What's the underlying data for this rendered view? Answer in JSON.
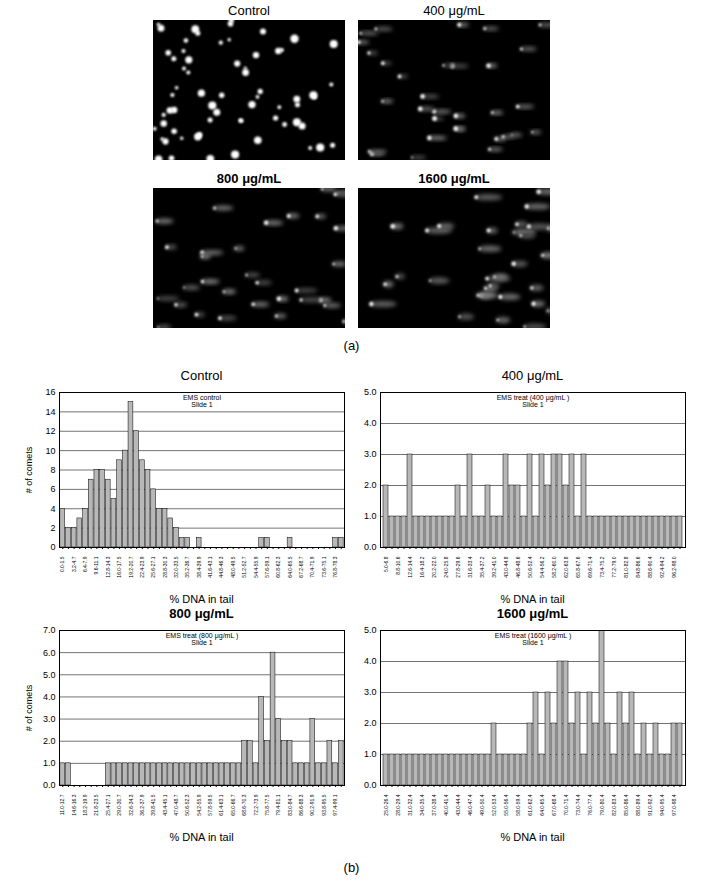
{
  "figure": {
    "label_a": "(a)",
    "label_b": "(b)",
    "images": [
      "Control",
      "400 μg/mL",
      "800 μg/mL",
      "1600 μg/mL"
    ]
  },
  "chart_data": [
    {
      "type": "bar",
      "title": "Control",
      "annotations": [
        "EMS control",
        "Slide 1"
      ],
      "xlabel": "% DNA in tail",
      "ylabel": "# of comets",
      "categories": [
        "0.0-1.5",
        null,
        "3.2-4.7",
        null,
        "6.4-7.9",
        null,
        "9.6-11.1",
        null,
        "12.8-14.3",
        null,
        "16.0-17.5",
        null,
        "19.2-20.7",
        null,
        "22.4-23.9",
        null,
        "25.6-27.1",
        null,
        "28.8-30.3",
        null,
        "32.0-33.5",
        null,
        "35.2-36.7",
        null,
        "38.4-39.9",
        null,
        "41.6-43.1",
        null,
        "44.8-46.3",
        null,
        "48.0-49.5",
        null,
        "51.2-52.7",
        null,
        "54.4-55.9",
        null,
        "57.6-59.1",
        null,
        "60.8-62.3",
        null,
        "64.0-65.5",
        null,
        "67.2-68.7",
        null,
        "70.4-71.9",
        null,
        "73.6-75.1",
        null,
        "76.8-78.3",
        null
      ],
      "values": [
        4,
        2,
        2,
        3,
        4,
        7,
        8,
        8,
        7,
        5,
        9,
        10,
        15,
        12,
        9,
        8,
        6,
        4,
        4,
        3,
        2,
        1,
        1,
        0,
        1,
        0,
        0,
        0,
        0,
        0,
        0,
        0,
        0,
        0,
        0,
        1,
        1,
        0,
        0,
        0,
        1,
        0,
        0,
        0,
        0,
        0,
        0,
        0,
        1,
        1
      ],
      "color": "#b8b8b8",
      "ylim": [
        0,
        16
      ],
      "yticks": [
        0,
        2,
        4,
        6,
        8,
        10,
        12,
        14,
        16
      ],
      "grid": true
    },
    {
      "type": "bar",
      "title": "400 μg/mL",
      "annotations": [
        "EMS treat (400 μg/mL )",
        "Slide 1"
      ],
      "xlabel": "% DNA in tail",
      "categories": [
        "5.0-6.8",
        null,
        "8.8-10.6",
        null,
        "12.6-14.4",
        null,
        "16.4-18.2",
        null,
        "20.2-22.0",
        null,
        "24.0-25.8",
        null,
        "27.8-29.6",
        null,
        "31.6-33.4",
        null,
        "35.4-37.2",
        null,
        "39.2-41.0",
        null,
        "43.0-44.8",
        null,
        "46.8-48.6",
        null,
        "50.6-52.4",
        null,
        "54.4-56.2",
        null,
        "58.2-60.0",
        null,
        "62.0-63.8",
        null,
        "65.8-67.6",
        null,
        "69.6-71.4",
        null,
        "73.4-75.2",
        null,
        "77.2-79.0",
        null,
        "81.0-82.8",
        null,
        "84.8-86.6",
        null,
        "88.6-90.4",
        null,
        "92.4-94.2",
        null,
        "96.2-98.0",
        null
      ],
      "values": [
        2,
        1,
        1,
        1,
        3,
        1,
        1,
        1,
        1,
        1,
        1,
        1,
        2,
        1,
        3,
        1,
        1,
        2,
        1,
        1,
        3,
        2,
        2,
        1,
        3,
        1,
        3,
        2,
        3,
        3,
        2,
        3,
        1,
        3,
        1,
        1,
        1,
        1,
        1,
        1,
        1,
        1,
        1,
        1,
        1,
        1,
        1,
        1,
        1,
        1
      ],
      "color": "#b8b8b8",
      "ylim": [
        0,
        5
      ],
      "yticks": [
        0,
        1,
        2,
        3,
        4,
        5
      ],
      "grid": true
    },
    {
      "type": "bar",
      "title": "800 μg/mL",
      "annotations": [
        "EMS treat (800 μg/mL )",
        "Slide 1"
      ],
      "xlabel": "% DNA in tail",
      "ylabel": "# of comets",
      "categories": [
        "11.0-12.7",
        null,
        "14.6-16.3",
        null,
        "18.2-19.9",
        null,
        "21.8-23.5",
        null,
        "25.4-27.1",
        null,
        "29.0-30.7",
        null,
        "32.6-34.3",
        null,
        "36.2-37.9",
        null,
        "39.8-41.5",
        null,
        "43.4-45.1",
        null,
        "47.0-48.7",
        null,
        "50.6-52.3",
        null,
        "54.2-55.9",
        null,
        "57.8-59.5",
        null,
        "61.4-63.1",
        null,
        "65.0-66.7",
        null,
        "68.6-70.3",
        null,
        "72.2-73.9",
        null,
        "75.8-77.5",
        null,
        "79.4-81.1",
        null,
        "83.0-84.7",
        null,
        "86.6-88.3",
        null,
        "90.2-91.9",
        null,
        "93.8-95.5",
        null,
        "97.4-99.1",
        null
      ],
      "values": [
        1,
        1,
        0,
        0,
        0,
        0,
        0,
        0,
        1,
        1,
        1,
        1,
        1,
        1,
        1,
        1,
        1,
        1,
        1,
        1,
        1,
        1,
        1,
        1,
        1,
        1,
        1,
        1,
        1,
        1,
        1,
        1,
        2,
        2,
        1,
        4,
        2,
        6,
        3,
        2,
        2,
        1,
        1,
        1,
        3,
        1,
        1,
        2,
        1,
        2
      ],
      "color": "#b8b8b8",
      "ylim": [
        0,
        7
      ],
      "yticks": [
        0,
        1,
        2,
        3,
        4,
        5,
        6,
        7
      ],
      "grid": true
    },
    {
      "type": "bar",
      "title": "1600 μg/mL",
      "annotations": [
        "EMS treat (1600 μg/mL )",
        "Slide 1"
      ],
      "xlabel": "% DNA in tail",
      "categories": [
        "25.0-26.4",
        null,
        "28.0-29.4",
        null,
        "31.0-32.4",
        null,
        "34.0-35.4",
        null,
        "37.0-38.4",
        null,
        "40.0-41.4",
        null,
        "43.0-44.4",
        null,
        "46.0-47.4",
        null,
        "49.0-50.4",
        null,
        "52.0-53.4",
        null,
        "55.0-56.4",
        null,
        "58.0-59.4",
        null,
        "61.0-62.4",
        null,
        "64.0-65.4",
        null,
        "67.0-68.4",
        null,
        "70.0-71.4",
        null,
        "73.0-74.4",
        null,
        "76.0-77.4",
        null,
        "79.0-80.4",
        null,
        "82.0-83.4",
        null,
        "85.0-86.4",
        null,
        "88.0-89.4",
        null,
        "91.0-92.4",
        null,
        "94.0-95.4",
        null,
        "97.0-98.4",
        null
      ],
      "values": [
        1,
        1,
        1,
        1,
        1,
        1,
        1,
        1,
        1,
        1,
        1,
        1,
        1,
        1,
        1,
        1,
        1,
        1,
        2,
        1,
        1,
        1,
        1,
        1,
        2,
        3,
        1,
        3,
        2,
        4,
        4,
        2,
        3,
        1,
        3,
        2,
        5,
        2,
        1,
        3,
        2,
        3,
        1,
        2,
        1,
        2,
        1,
        1,
        2,
        2
      ],
      "color": "#b8b8b8",
      "ylim": [
        0,
        5
      ],
      "yticks": [
        0,
        1,
        2,
        3,
        4,
        5
      ],
      "grid": true
    }
  ]
}
